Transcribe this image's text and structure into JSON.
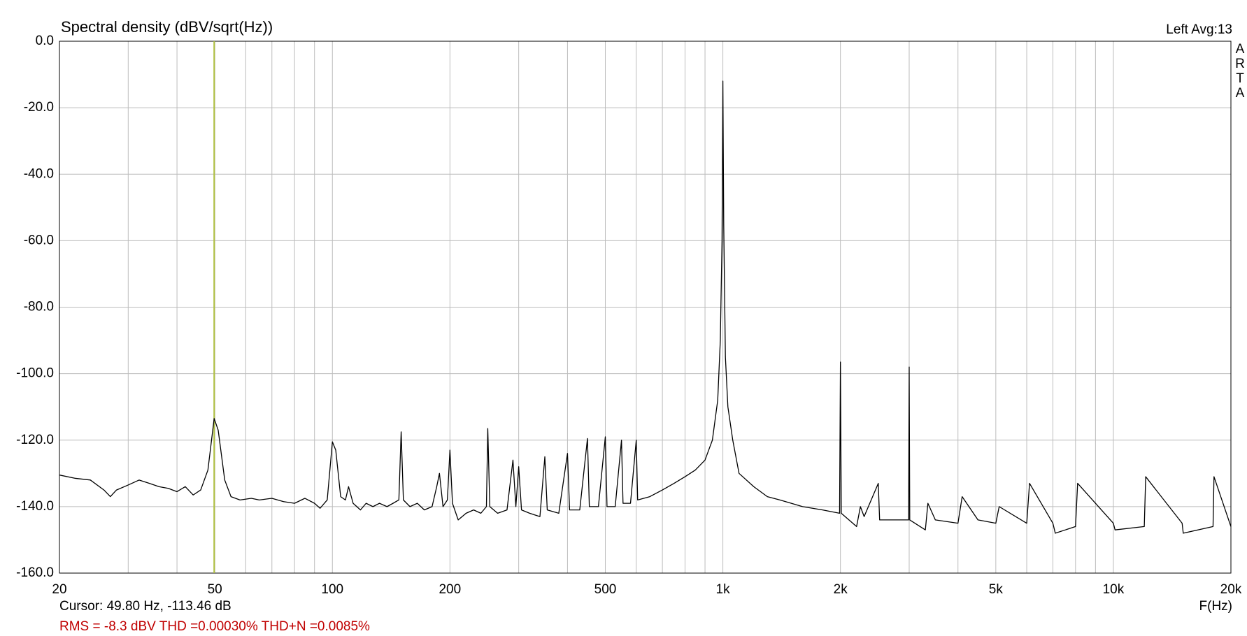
{
  "chart_data": {
    "type": "line",
    "title": "Spectral density (dBV/sqrt(Hz))",
    "corner_label": "Left  Avg:13",
    "side_label": [
      "A",
      "R",
      "T",
      "A"
    ],
    "x_label": "F(Hz)",
    "cursor_text": "Cursor: 49.80 Hz, -113.46 dB",
    "stats_text": "RMS =   -8.3 dBV  THD =0.00030%  THD+N =0.0085%",
    "xscale": "log",
    "grid": true,
    "color": "#000000",
    "cursor_x": 49.8,
    "cursor_color": "#b0c040",
    "xlim": [
      20,
      20000
    ],
    "ylim": [
      -160,
      0
    ],
    "xticks": [
      20,
      50,
      100,
      200,
      500,
      {
        "value": 1000,
        "label": "1k"
      },
      {
        "value": 2000,
        "label": "2k"
      },
      {
        "value": 5000,
        "label": "5k"
      },
      {
        "value": 10000,
        "label": "10k"
      },
      {
        "value": 20000,
        "label": "20k"
      }
    ],
    "xminor": [
      30,
      40,
      60,
      70,
      80,
      90,
      300,
      400,
      600,
      700,
      800,
      900,
      3000,
      4000,
      6000,
      7000,
      8000,
      9000
    ],
    "yticks": [
      {
        "value": 0,
        "label": "0.0"
      },
      {
        "value": -20,
        "label": "-20.0"
      },
      {
        "value": -40,
        "label": "-40.0"
      },
      {
        "value": -60,
        "label": "-60.0"
      },
      {
        "value": -80,
        "label": "-80.0"
      },
      {
        "value": -100,
        "label": "-100.0"
      },
      {
        "value": -120,
        "label": "-120.0"
      },
      {
        "value": -140,
        "label": "-140.0"
      },
      {
        "value": -160,
        "label": "-160.0"
      }
    ],
    "x": [
      20,
      22,
      24,
      26,
      27,
      28,
      30,
      32,
      34,
      36,
      38,
      40,
      42,
      44,
      46,
      48,
      49.8,
      51,
      53,
      55,
      58,
      62,
      65,
      70,
      75,
      80,
      85,
      90,
      93,
      97,
      100,
      102,
      105,
      108,
      110,
      113,
      118,
      122,
      127,
      132,
      138,
      143,
      148,
      150,
      152,
      158,
      165,
      172,
      180,
      185,
      188,
      192,
      197,
      200,
      203,
      210,
      220,
      230,
      240,
      248,
      250,
      253,
      265,
      280,
      290,
      295,
      300,
      305,
      320,
      340,
      350,
      355,
      380,
      400,
      405,
      430,
      450,
      455,
      480,
      500,
      505,
      530,
      550,
      555,
      580,
      600,
      605,
      650,
      700,
      750,
      800,
      850,
      900,
      940,
      970,
      985,
      995,
      1000,
      1005,
      1015,
      1030,
      1060,
      1100,
      1200,
      1300,
      1400,
      1600,
      1800,
      1990,
      2000,
      2010,
      2200,
      2250,
      2300,
      2500,
      2520,
      2800,
      2990,
      3000,
      3010,
      3300,
      3350,
      3500,
      4000,
      4100,
      4500,
      5000,
      5100,
      6000,
      6100,
      7000,
      7100,
      8000,
      8100,
      10000,
      10100,
      12000,
      12100,
      15000,
      15100,
      18000,
      18100,
      20000
    ],
    "values": [
      -130.5,
      -131.5,
      -132,
      -135,
      -137,
      -135,
      -133.5,
      -132,
      -133,
      -134,
      -134.5,
      -135.5,
      -134,
      -136.5,
      -135,
      -129,
      -113.5,
      -117,
      -132,
      -137,
      -138,
      -137.5,
      -138,
      -137.5,
      -138.5,
      -139,
      -137.5,
      -139,
      -140.5,
      -138,
      -120.5,
      -123,
      -137,
      -138,
      -134,
      -139,
      -141,
      -139,
      -140,
      -139,
      -140,
      -139,
      -138,
      -117.5,
      -138,
      -140,
      -139,
      -141,
      -140,
      -134,
      -130,
      -140,
      -138,
      -123,
      -139,
      -144,
      -142,
      -141,
      -142,
      -140,
      -116.5,
      -140,
      -142,
      -141,
      -126,
      -140,
      -128,
      -141,
      -142,
      -143,
      -125,
      -141,
      -142,
      -124,
      -141,
      -141,
      -119.5,
      -140,
      -140,
      -119,
      -140,
      -140,
      -120,
      -139,
      -139,
      -120,
      -138,
      -137,
      -135,
      -133,
      -131,
      -129,
      -126,
      -120,
      -108,
      -90,
      -60,
      -12,
      -55,
      -95,
      -110,
      -120,
      -130,
      -134,
      -137,
      -138,
      -140,
      -141,
      -142,
      -96.5,
      -142,
      -146,
      -140,
      -143,
      -133,
      -144,
      -144,
      -144,
      -98,
      -144,
      -147,
      -139,
      -144,
      -145,
      -137,
      -144,
      -145,
      -140,
      -145,
      -133,
      -145,
      -148,
      -146,
      -133,
      -145,
      -147,
      -146,
      -131,
      -145,
      -148,
      -146,
      -131,
      -146
    ]
  }
}
